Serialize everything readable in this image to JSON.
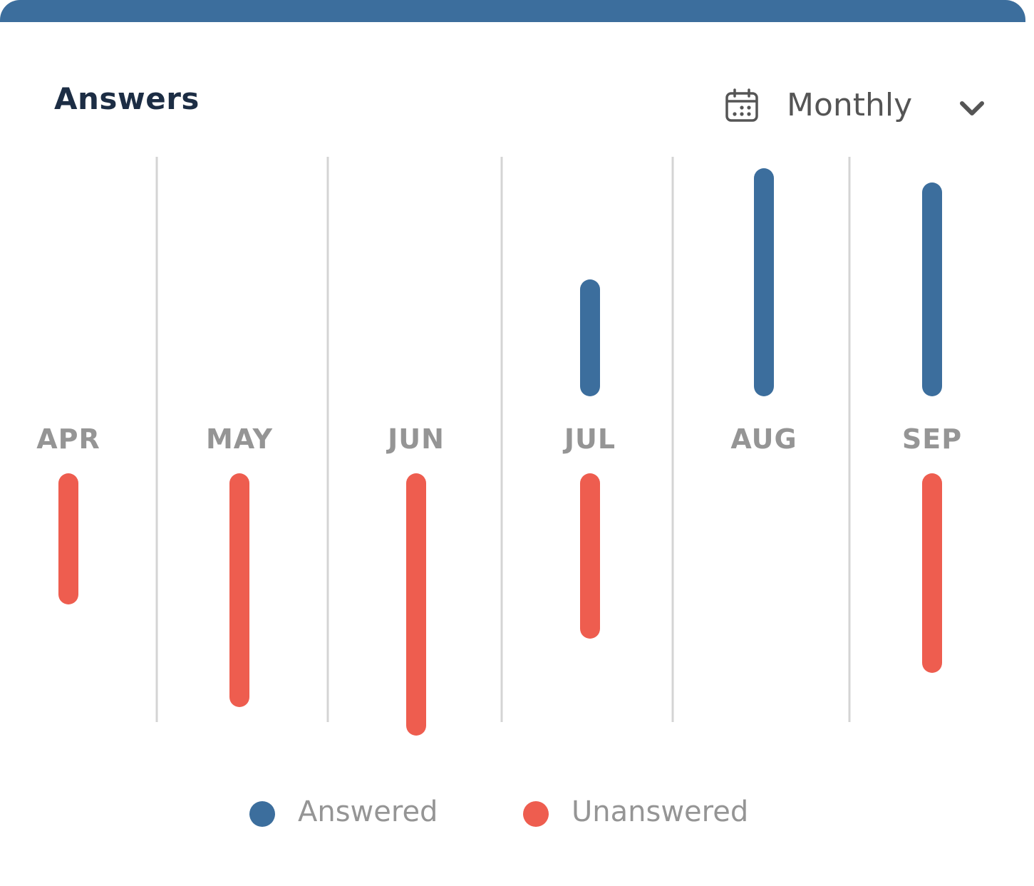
{
  "card": {
    "title": "Answers",
    "accent_color": "#3c6e9d"
  },
  "period_select": {
    "icon": "calendar-icon",
    "value": "Monthly",
    "chevron_icon": "chevron-down-icon"
  },
  "colors": {
    "answered": "#3c6e9d",
    "unanswered": "#ee5d4f",
    "divider": "#d4d4d4",
    "label": "#959595"
  },
  "chart_data": {
    "type": "bar",
    "title": "Answers",
    "categories": [
      "APR",
      "MAY",
      "JUN",
      "JUL",
      "AUG",
      "SEP"
    ],
    "series": [
      {
        "name": "Answered",
        "values": [
          0,
          0,
          0,
          34,
          73,
          68
        ]
      },
      {
        "name": "Unanswered",
        "values": [
          39,
          75,
          85,
          51,
          0,
          63
        ]
      }
    ],
    "ylim": [
      0,
      100
    ],
    "grid": false,
    "legend_position": "bottom-center"
  },
  "legend": [
    {
      "label": "Answered",
      "color": "#3c6e9d"
    },
    {
      "label": "Unanswered",
      "color": "#ee5d4f"
    }
  ]
}
